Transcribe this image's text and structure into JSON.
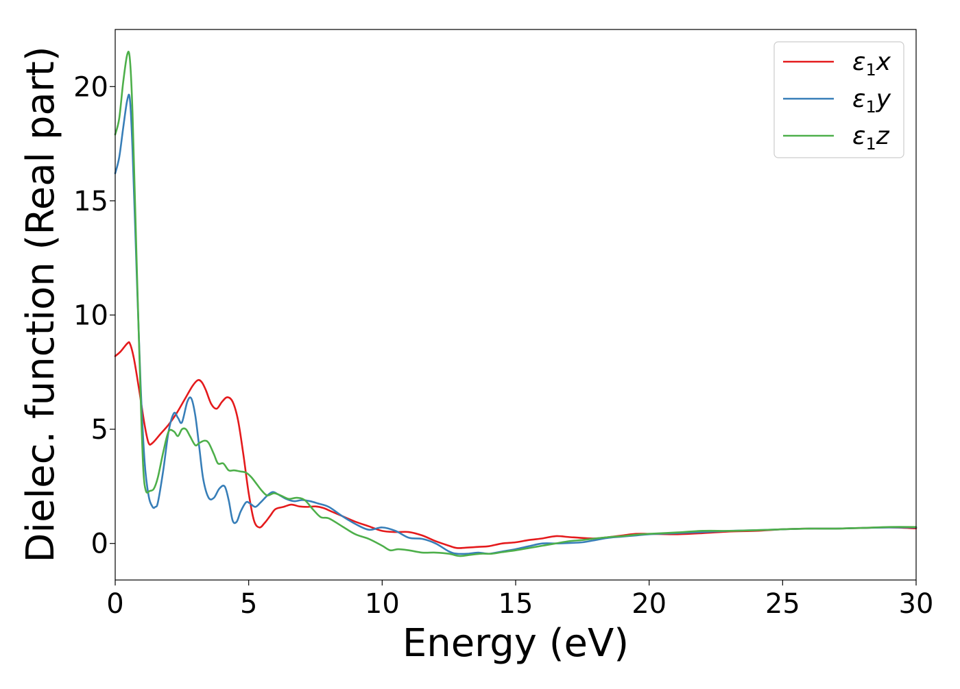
{
  "chart_data": {
    "type": "line",
    "title": "",
    "xlabel": "Energy (eV)",
    "ylabel": "Dielec. function (Real part)",
    "xlim": [
      0,
      30
    ],
    "ylim": [
      -1.6,
      22.5
    ],
    "xticks": [
      0,
      5,
      10,
      15,
      20,
      25,
      30
    ],
    "xtick_labels": [
      "0",
      "5",
      "10",
      "15",
      "20",
      "25",
      "30"
    ],
    "yticks": [
      0,
      5,
      10,
      15,
      20
    ],
    "ytick_labels": [
      "0",
      "5",
      "10",
      "15",
      "20"
    ],
    "grid": false,
    "legend_position": "top-right",
    "series": [
      {
        "name": "ε1x",
        "legend_base": "ε",
        "legend_sub": "1",
        "legend_tail": "x",
        "color": "#e41a1c",
        "x": [
          0,
          0.2,
          0.45,
          0.55,
          0.7,
          0.9,
          1.1,
          1.25,
          1.4,
          1.7,
          2.0,
          2.3,
          2.6,
          2.9,
          3.1,
          3.25,
          3.4,
          3.6,
          3.8,
          4.0,
          4.2,
          4.4,
          4.6,
          4.8,
          5.0,
          5.2,
          5.4,
          5.6,
          5.8,
          6.0,
          6.3,
          6.6,
          6.9,
          7.2,
          7.5,
          7.8,
          8.1,
          8.5,
          9.0,
          9.5,
          10.0,
          10.5,
          11.0,
          11.5,
          12.0,
          12.5,
          12.8,
          13.2,
          13.6,
          14.0,
          14.5,
          15.0,
          15.5,
          16.0,
          16.5,
          17.0,
          17.5,
          18.0,
          18.5,
          19.0,
          19.5,
          20.0,
          21.0,
          22.0,
          23.0,
          24.0,
          25.0,
          26.0,
          27.0,
          28.0,
          29.0,
          30.0
        ],
        "y": [
          8.2,
          8.4,
          8.75,
          8.75,
          8.1,
          6.7,
          5.2,
          4.4,
          4.4,
          4.8,
          5.2,
          5.7,
          6.3,
          6.9,
          7.15,
          7.05,
          6.7,
          6.1,
          5.9,
          6.2,
          6.4,
          6.2,
          5.4,
          3.9,
          2.2,
          1.0,
          0.7,
          0.9,
          1.2,
          1.5,
          1.6,
          1.7,
          1.62,
          1.6,
          1.62,
          1.55,
          1.4,
          1.2,
          0.95,
          0.75,
          0.55,
          0.5,
          0.5,
          0.35,
          0.1,
          -0.1,
          -0.2,
          -0.18,
          -0.15,
          -0.12,
          0.0,
          0.05,
          0.15,
          0.22,
          0.32,
          0.28,
          0.24,
          0.22,
          0.28,
          0.35,
          0.42,
          0.42,
          0.4,
          0.45,
          0.52,
          0.55,
          0.62,
          0.65,
          0.65,
          0.68,
          0.7,
          0.66
        ]
      },
      {
        "name": "ε1y",
        "legend_base": "ε",
        "legend_sub": "1",
        "legend_tail": "y",
        "color": "#377eb8",
        "x": [
          0,
          0.15,
          0.3,
          0.45,
          0.55,
          0.65,
          0.8,
          0.95,
          1.1,
          1.25,
          1.4,
          1.5,
          1.6,
          1.8,
          2.0,
          2.2,
          2.35,
          2.5,
          2.7,
          2.85,
          3.0,
          3.15,
          3.3,
          3.5,
          3.7,
          3.9,
          4.1,
          4.25,
          4.4,
          4.55,
          4.7,
          4.9,
          5.05,
          5.25,
          5.45,
          5.7,
          5.9,
          6.1,
          6.4,
          6.7,
          7.0,
          7.3,
          7.6,
          8.0,
          8.5,
          9.0,
          9.5,
          10.0,
          10.5,
          11.0,
          11.5,
          12.0,
          12.5,
          12.8,
          13.2,
          13.6,
          14.0,
          14.5,
          15.0,
          15.5,
          16.0,
          16.5,
          17.0,
          17.5,
          18.0,
          18.5,
          19.0,
          19.5,
          20.0,
          21.0,
          22.0,
          23.0,
          24.0,
          25.0,
          26.0,
          27.0,
          28.0,
          29.0,
          30.0
        ],
        "y": [
          16.2,
          16.9,
          18.2,
          19.4,
          19.45,
          17.2,
          12.0,
          7.0,
          3.6,
          2.1,
          1.6,
          1.6,
          1.8,
          3.2,
          4.9,
          5.7,
          5.5,
          5.3,
          6.2,
          6.35,
          5.6,
          4.2,
          2.8,
          2.0,
          2.0,
          2.4,
          2.5,
          1.9,
          1.0,
          0.95,
          1.4,
          1.8,
          1.75,
          1.6,
          1.8,
          2.1,
          2.25,
          2.15,
          1.95,
          1.85,
          1.9,
          1.85,
          1.75,
          1.6,
          1.2,
          0.85,
          0.6,
          0.7,
          0.55,
          0.25,
          0.2,
          0.0,
          -0.35,
          -0.45,
          -0.45,
          -0.4,
          -0.45,
          -0.35,
          -0.25,
          -0.12,
          0.0,
          0.0,
          0.02,
          0.05,
          0.15,
          0.25,
          0.3,
          0.35,
          0.4,
          0.45,
          0.5,
          0.55,
          0.58,
          0.62,
          0.65,
          0.65,
          0.68,
          0.7,
          0.7
        ]
      },
      {
        "name": "ε1z",
        "legend_base": "ε",
        "legend_sub": "1",
        "legend_tail": "z",
        "color": "#4daf4a",
        "x": [
          0,
          0.15,
          0.3,
          0.45,
          0.55,
          0.65,
          0.8,
          0.95,
          1.05,
          1.15,
          1.3,
          1.45,
          1.6,
          1.8,
          2.0,
          2.2,
          2.35,
          2.5,
          2.65,
          2.8,
          3.0,
          3.15,
          3.35,
          3.5,
          3.7,
          3.85,
          4.05,
          4.25,
          4.45,
          4.7,
          4.9,
          5.1,
          5.3,
          5.5,
          5.7,
          5.95,
          6.2,
          6.5,
          6.8,
          7.1,
          7.4,
          7.7,
          8.0,
          8.5,
          9.0,
          9.5,
          10.0,
          10.3,
          10.6,
          11.0,
          11.5,
          12.0,
          12.5,
          12.9,
          13.3,
          13.7,
          14.1,
          14.5,
          15.0,
          15.5,
          16.0,
          16.5,
          17.0,
          17.5,
          18.0,
          18.5,
          19.0,
          19.5,
          20.0,
          21.0,
          22.0,
          23.0,
          24.0,
          25.0,
          26.0,
          27.0,
          28.0,
          29.0,
          30.0
        ],
        "y": [
          17.9,
          18.6,
          20.2,
          21.4,
          21.2,
          18.8,
          12.5,
          6.5,
          3.3,
          2.3,
          2.3,
          2.4,
          2.9,
          4.0,
          4.9,
          4.9,
          4.7,
          5.0,
          5.0,
          4.7,
          4.3,
          4.4,
          4.5,
          4.4,
          3.9,
          3.5,
          3.5,
          3.2,
          3.2,
          3.15,
          3.1,
          2.9,
          2.6,
          2.3,
          2.1,
          2.2,
          2.1,
          1.95,
          2.0,
          1.9,
          1.5,
          1.15,
          1.1,
          0.75,
          0.4,
          0.2,
          -0.1,
          -0.3,
          -0.25,
          -0.3,
          -0.4,
          -0.4,
          -0.45,
          -0.55,
          -0.5,
          -0.45,
          -0.45,
          -0.38,
          -0.3,
          -0.2,
          -0.1,
          0.0,
          0.1,
          0.15,
          0.22,
          0.28,
          0.32,
          0.38,
          0.42,
          0.48,
          0.55,
          0.55,
          0.58,
          0.62,
          0.65,
          0.65,
          0.68,
          0.72,
          0.72
        ]
      }
    ]
  }
}
